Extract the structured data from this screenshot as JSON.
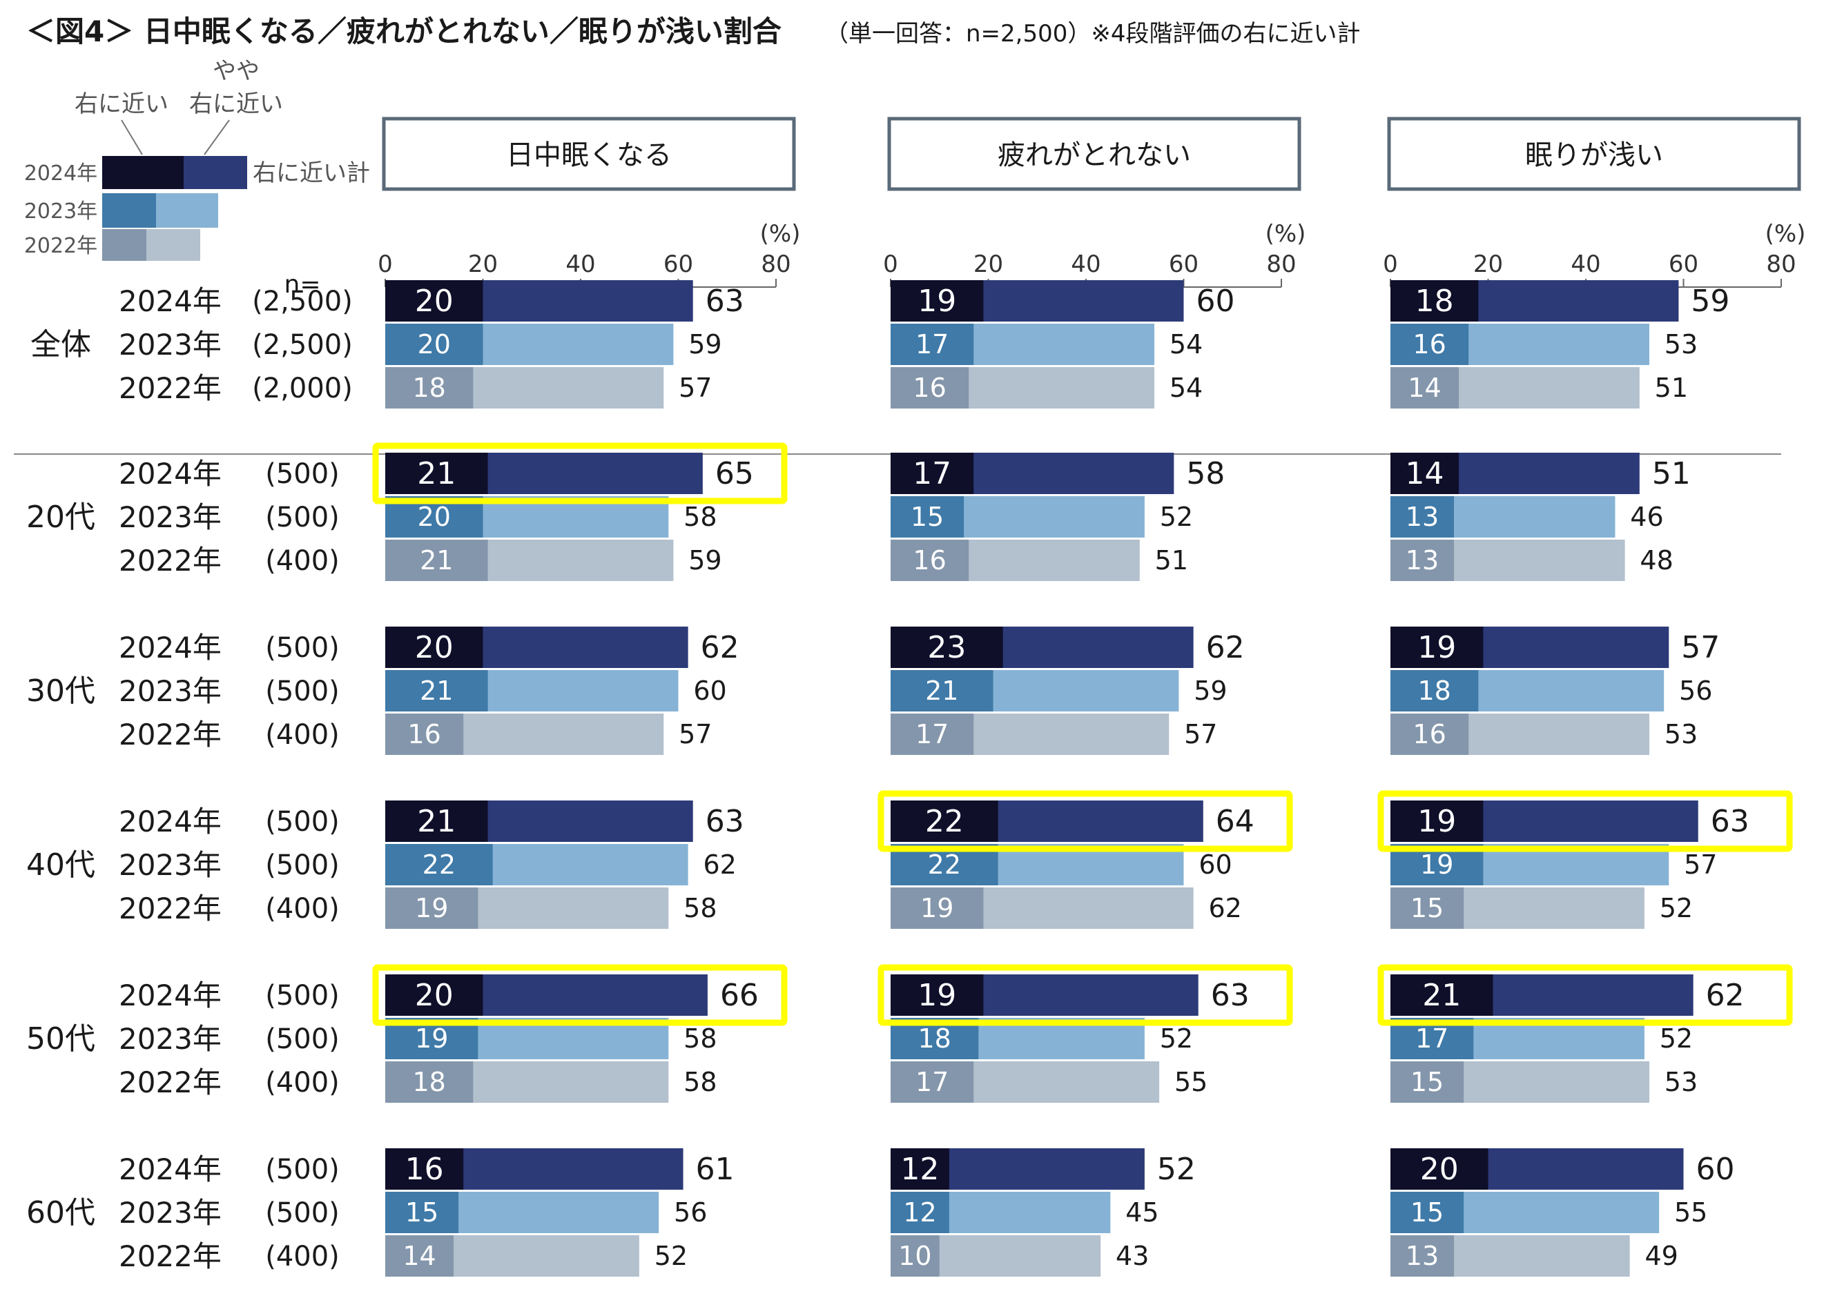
{
  "title": {
    "main": "＜図4＞ 日中眠くなる／疲れがとれない／眠りが浅い割合",
    "sub": "（単一回答：n=2,500）※4段階評価の右に近い計"
  },
  "legend": {
    "label_dark": "右に近い",
    "label_light_line1": "やや",
    "label_light_line2": "右に近い",
    "total_label": "右に近い計",
    "years": [
      "2024年",
      "2023年",
      "2022年"
    ]
  },
  "colors": {
    "2024": {
      "dark": "#0f0f2a",
      "light": "#2d3a78"
    },
    "2023": {
      "dark": "#3f7aa8",
      "light": "#86b3d5"
    },
    "2022": {
      "dark": "#8496ab",
      "light": "#b3c0cd"
    },
    "highlight": "#ffff00",
    "panel_border": "#5a6a78"
  },
  "n_header": "n=",
  "chart_data": {
    "type": "bar",
    "stacked": true,
    "orientation": "horizontal",
    "unit": "(%)",
    "xlim": [
      0,
      80
    ],
    "xticks": [
      0,
      20,
      40,
      60,
      80
    ],
    "panels": [
      "日中眠くなる",
      "疲れがとれない",
      "眠りが浅い"
    ],
    "series_meaning": {
      "dark": "右に近い",
      "total": "右に近い計"
    },
    "groups": [
      {
        "name": "全体",
        "rows": [
          {
            "year": "2024年",
            "n": "(2,500)",
            "values": [
              [
                20,
                63
              ],
              [
                19,
                60
              ],
              [
                18,
                59
              ]
            ]
          },
          {
            "year": "2023年",
            "n": "(2,500)",
            "values": [
              [
                20,
                59
              ],
              [
                17,
                54
              ],
              [
                16,
                53
              ]
            ]
          },
          {
            "year": "2022年",
            "n": "(2,000)",
            "values": [
              [
                18,
                57
              ],
              [
                16,
                54
              ],
              [
                14,
                51
              ]
            ]
          }
        ]
      },
      {
        "name": "20代",
        "rows": [
          {
            "year": "2024年",
            "n": "(500)",
            "values": [
              [
                21,
                65
              ],
              [
                17,
                58
              ],
              [
                14,
                51
              ]
            ]
          },
          {
            "year": "2023年",
            "n": "(500)",
            "values": [
              [
                20,
                58
              ],
              [
                15,
                52
              ],
              [
                13,
                46
              ]
            ]
          },
          {
            "year": "2022年",
            "n": "(400)",
            "values": [
              [
                21,
                59
              ],
              [
                16,
                51
              ],
              [
                13,
                48
              ]
            ]
          }
        ]
      },
      {
        "name": "30代",
        "rows": [
          {
            "year": "2024年",
            "n": "(500)",
            "values": [
              [
                20,
                62
              ],
              [
                23,
                62
              ],
              [
                19,
                57
              ]
            ]
          },
          {
            "year": "2023年",
            "n": "(500)",
            "values": [
              [
                21,
                60
              ],
              [
                21,
                59
              ],
              [
                18,
                56
              ]
            ]
          },
          {
            "year": "2022年",
            "n": "(400)",
            "values": [
              [
                16,
                57
              ],
              [
                17,
                57
              ],
              [
                16,
                53
              ]
            ]
          }
        ]
      },
      {
        "name": "40代",
        "rows": [
          {
            "year": "2024年",
            "n": "(500)",
            "values": [
              [
                21,
                63
              ],
              [
                22,
                64
              ],
              [
                19,
                63
              ]
            ]
          },
          {
            "year": "2023年",
            "n": "(500)",
            "values": [
              [
                22,
                62
              ],
              [
                22,
                60
              ],
              [
                19,
                57
              ]
            ]
          },
          {
            "year": "2022年",
            "n": "(400)",
            "values": [
              [
                19,
                58
              ],
              [
                19,
                62
              ],
              [
                15,
                52
              ]
            ]
          }
        ]
      },
      {
        "name": "50代",
        "rows": [
          {
            "year": "2024年",
            "n": "(500)",
            "values": [
              [
                20,
                66
              ],
              [
                19,
                63
              ],
              [
                21,
                62
              ]
            ]
          },
          {
            "year": "2023年",
            "n": "(500)",
            "values": [
              [
                19,
                58
              ],
              [
                18,
                52
              ],
              [
                17,
                52
              ]
            ]
          },
          {
            "year": "2022年",
            "n": "(400)",
            "values": [
              [
                18,
                58
              ],
              [
                17,
                55
              ],
              [
                15,
                53
              ]
            ]
          }
        ]
      },
      {
        "name": "60代",
        "rows": [
          {
            "year": "2024年",
            "n": "(500)",
            "values": [
              [
                16,
                61
              ],
              [
                12,
                52
              ],
              [
                20,
                60
              ]
            ]
          },
          {
            "year": "2023年",
            "n": "(500)",
            "values": [
              [
                15,
                56
              ],
              [
                12,
                45
              ],
              [
                15,
                55
              ]
            ]
          },
          {
            "year": "2022年",
            "n": "(400)",
            "values": [
              [
                14,
                52
              ],
              [
                10,
                43
              ],
              [
                13,
                49
              ]
            ]
          }
        ]
      }
    ],
    "highlights": [
      {
        "group": "20代",
        "panel": "日中眠くなる",
        "year": "2024年"
      },
      {
        "group": "40代",
        "panel": "疲れがとれない",
        "year": "2024年"
      },
      {
        "group": "40代",
        "panel": "眠りが浅い",
        "year": "2024年"
      },
      {
        "group": "50代",
        "panel": "日中眠くなる",
        "year": "2024年"
      },
      {
        "group": "50代",
        "panel": "疲れがとれない",
        "year": "2024年"
      },
      {
        "group": "50代",
        "panel": "眠りが浅い",
        "year": "2024年"
      }
    ]
  }
}
